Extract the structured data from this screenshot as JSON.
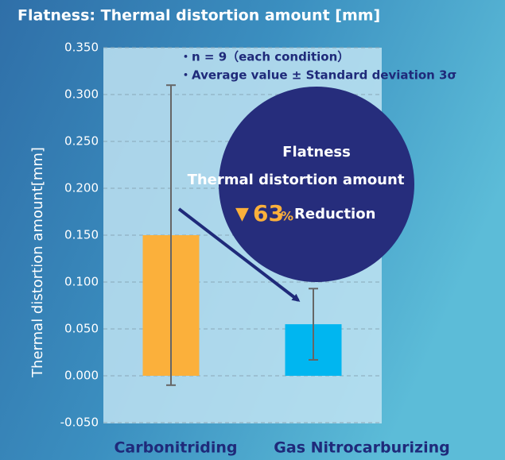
{
  "chart_data": {
    "type": "bar",
    "title": "Flatness: Thermal distortion amount [mm]",
    "y_label": "Thermal distortion amount[mm]",
    "categories": [
      "Carbonitriding",
      "Gas Nitrocarburizing"
    ],
    "values": [
      0.15,
      0.055
    ],
    "errors": [
      0.16,
      0.038
    ],
    "colors": [
      "#fbb03b",
      "#00b6f0"
    ],
    "ylim": [
      -0.05,
      0.35
    ],
    "yticks": [
      {
        "value": -0.05,
        "label": "-0.050"
      },
      {
        "value": 0,
        "label": "0.000"
      },
      {
        "value": 0.05,
        "label": "0.050"
      },
      {
        "value": 0.1,
        "label": "0.100"
      },
      {
        "value": 0.15,
        "label": "0.150"
      },
      {
        "value": 0.2,
        "label": "0.200"
      },
      {
        "value": 0.25,
        "label": "0.250"
      },
      {
        "value": 0.3,
        "label": "0.300"
      },
      {
        "value": 0.35,
        "label": "0.350"
      }
    ],
    "grid": true,
    "notes": [
      "・n = 9（each condition）",
      "・Average value ± Standard deviation 3σ"
    ],
    "badge": {
      "line1": "Flatness",
      "line2": "Thermal distortion amount",
      "symbol": "▼",
      "percent": "63",
      "unit": "%",
      "label": "Reduction"
    }
  }
}
